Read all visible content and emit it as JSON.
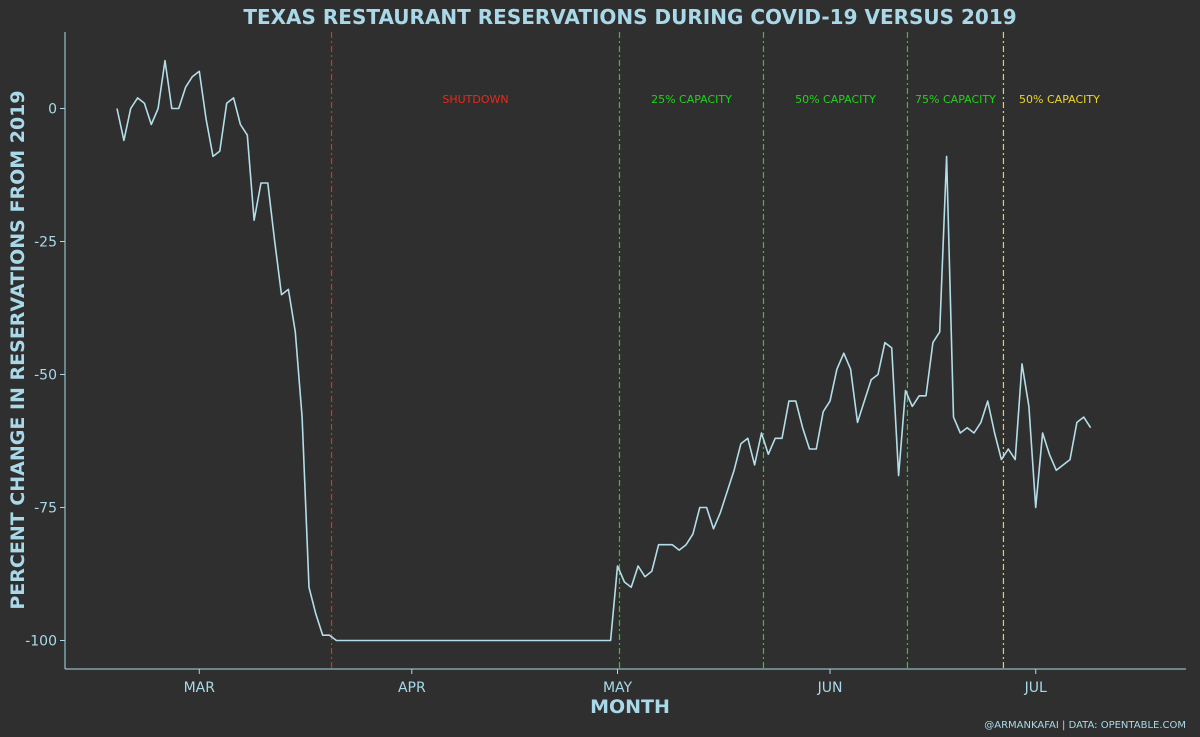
{
  "chart_data": {
    "type": "line",
    "title": "TEXAS RESTAURANT RESERVATIONS DURING COVID-19 VERSUS 2019",
    "xlabel": "MONTH",
    "ylabel": "PERCENT CHANGE IN RESERVATIONS FROM 2019",
    "caption": "@ARMANKAFAI | DATA: OPENTABLE.COM",
    "x_tick_labels": [
      "MAR",
      "APR",
      "MAY",
      "JUN",
      "JUL"
    ],
    "y_ticks": [
      0,
      -25,
      -50,
      -75,
      -100
    ],
    "y_tick_labels": [
      "0",
      "-25",
      "-50",
      "-75",
      "-100"
    ],
    "ylim": [
      -105,
      14
    ],
    "x_start": "2020-02-18",
    "x_end": "2020-07-14",
    "grid": false,
    "line_color": "#b3dde8",
    "events": [
      {
        "date": "2020-03-20",
        "label": "SHUTDOWN",
        "color": "#e8291c"
      },
      {
        "date": "2020-05-01",
        "label": "25% CAPACITY",
        "color": "#22d11b"
      },
      {
        "date": "2020-05-22",
        "label": "50% CAPACITY",
        "color": "#22d11b"
      },
      {
        "date": "2020-06-12",
        "label": "75% CAPACITY",
        "color": "#22d11b"
      },
      {
        "date": "2020-06-26",
        "label": "50% CAPACITY",
        "color": "#ecd62a"
      }
    ],
    "series": [
      {
        "start_date": "2020-02-18",
        "values": [
          0,
          -6,
          0,
          2,
          1,
          -3,
          0,
          9,
          0,
          0,
          4,
          6,
          7,
          -2,
          -9,
          -8,
          1,
          2,
          -3,
          -5,
          -21,
          -14,
          -14,
          -25,
          -35,
          -34,
          -42,
          -58,
          -90,
          -95,
          -99,
          -99,
          -100,
          -100,
          -100,
          -100,
          -100,
          -100,
          -100,
          -100,
          -100,
          -100,
          -100,
          -100,
          -100,
          -100,
          -100,
          -100,
          -100,
          -100,
          -100,
          -100,
          -100,
          -100,
          -100,
          -100,
          -100,
          -100,
          -100,
          -100,
          -100,
          -100,
          -100,
          -100,
          -100,
          -100,
          -100,
          -100,
          -100,
          -100,
          -100,
          -100,
          -100,
          -86,
          -89,
          -90,
          -86,
          -88,
          -87,
          -82,
          -82,
          -82,
          -83,
          -82,
          -80,
          -75,
          -75,
          -79,
          -76,
          -72,
          -68,
          -63,
          -62,
          -67,
          -61,
          -65,
          -62,
          -62,
          -55,
          -55,
          -60,
          -64,
          -64,
          -57,
          -55,
          -49,
          -46,
          -49,
          -59,
          -55,
          -51,
          -50,
          -44,
          -45,
          -69,
          -53,
          -56,
          -54,
          -54,
          -44,
          -42,
          -9,
          -58,
          -61,
          -60,
          -61,
          -59,
          -55,
          -61,
          -66,
          -64,
          -66,
          -48,
          -56,
          -75,
          -61,
          -65,
          -68,
          -67,
          -66,
          -59,
          -58,
          -60
        ]
      }
    ]
  }
}
